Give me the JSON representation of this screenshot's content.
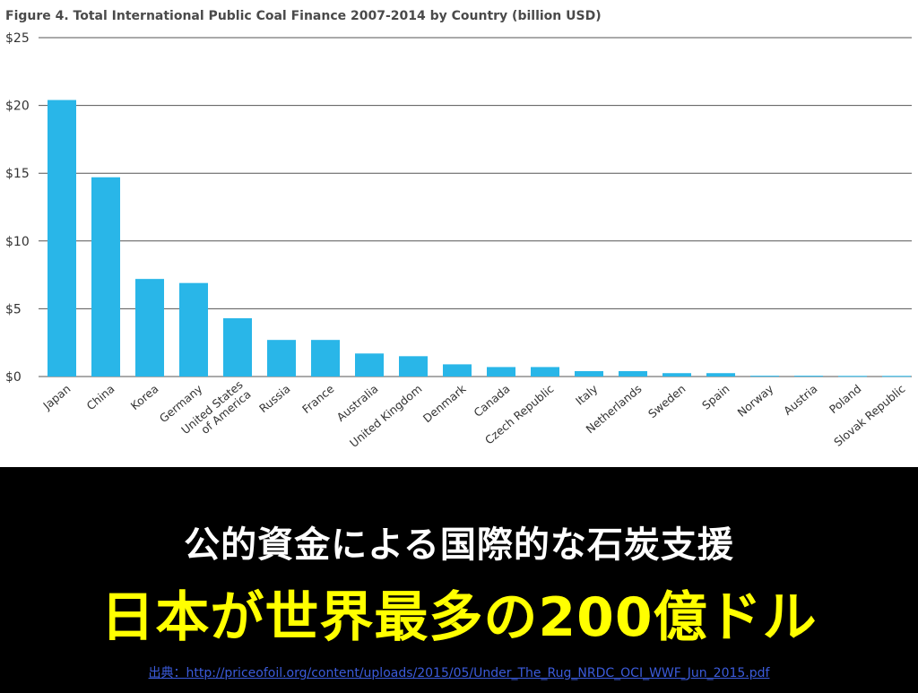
{
  "chart_data": {
    "type": "bar",
    "title": "Figure 4. Total International Public Coal Finance 2007-2014 by Country (billion USD)",
    "xlabel": "",
    "ylabel": "",
    "ylim": [
      0,
      25
    ],
    "yticks": [
      {
        "value": 25,
        "label": "$25"
      },
      {
        "value": 20,
        "label": "$20"
      },
      {
        "value": 15,
        "label": "$15"
      },
      {
        "value": 10,
        "label": "$10"
      },
      {
        "value": 5,
        "label": "$5"
      },
      {
        "value": 0,
        "label": "$0"
      }
    ],
    "grid": true,
    "bar_color": "#29b6e8",
    "categories": [
      [
        "Japan"
      ],
      [
        "China"
      ],
      [
        "Korea"
      ],
      [
        "Germany"
      ],
      [
        "United States",
        "of America"
      ],
      [
        "Russia"
      ],
      [
        "France"
      ],
      [
        "Australia"
      ],
      [
        "United Kingdom"
      ],
      [
        "Denmark"
      ],
      [
        "Canada"
      ],
      [
        "Czech Republic"
      ],
      [
        "Italy"
      ],
      [
        "Netherlands"
      ],
      [
        "Sweden"
      ],
      [
        "Spain"
      ],
      [
        "Norway"
      ],
      [
        "Austria"
      ],
      [
        "Poland"
      ],
      [
        "Slovak Republic"
      ]
    ],
    "values": [
      20.4,
      14.7,
      7.2,
      6.9,
      4.3,
      2.7,
      2.7,
      1.7,
      1.5,
      0.9,
      0.7,
      0.7,
      0.4,
      0.4,
      0.25,
      0.25,
      0.06,
      0.06,
      0.05,
      0.05
    ]
  },
  "headline": {
    "line1": "公的資金による国際的な石炭支援",
    "line2": "日本が世界最多の200億ドル"
  },
  "source": {
    "text": "出典：http://priceofoil.org/content/uploads/2015/05/Under_The_Rug_NRDC_OCI_WWF_Jun_2015.pdf"
  },
  "colors": {
    "background": "#000000",
    "headline_primary": "#ffffff",
    "headline_accent": "#ffff00",
    "link": "#3b5bdb"
  }
}
